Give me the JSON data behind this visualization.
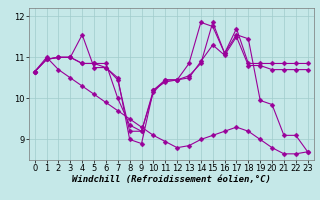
{
  "background_color": "#c5e8e8",
  "line_color": "#990099",
  "marker": "D",
  "markersize": 2.5,
  "linewidth": 0.8,
  "grid_color": "#a0cccc",
  "xlabel": "Windchill (Refroidissement éolien,°C)",
  "xlabel_fontsize": 6.5,
  "xlim": [
    -0.5,
    23.5
  ],
  "ylim": [
    8.5,
    12.2
  ],
  "yticks": [
    9,
    10,
    11,
    12
  ],
  "xticks": [
    0,
    1,
    2,
    3,
    4,
    5,
    6,
    7,
    8,
    9,
    10,
    11,
    12,
    13,
    14,
    15,
    16,
    17,
    18,
    19,
    20,
    21,
    22,
    23
  ],
  "tick_fontsize": 6,
  "series": [
    [
      10.65,
      10.95,
      11.0,
      11.0,
      11.55,
      10.75,
      10.75,
      10.5,
      9.0,
      8.9,
      10.2,
      10.4,
      10.45,
      10.55,
      10.85,
      11.85,
      11.1,
      11.55,
      11.45,
      9.95,
      9.85,
      9.1,
      9.1,
      8.7
    ],
    [
      10.65,
      10.95,
      11.0,
      11.0,
      10.85,
      10.85,
      10.85,
      10.0,
      9.35,
      9.2,
      10.15,
      10.45,
      10.45,
      10.85,
      11.85,
      11.75,
      11.1,
      11.7,
      10.85,
      10.85,
      10.85,
      10.85,
      10.85,
      10.85
    ],
    [
      10.65,
      10.95,
      11.0,
      11.0,
      10.85,
      10.85,
      10.75,
      10.45,
      9.2,
      9.2,
      10.2,
      10.45,
      10.45,
      10.5,
      10.9,
      11.3,
      11.05,
      11.5,
      10.8,
      10.8,
      10.7,
      10.7,
      10.7,
      10.7
    ],
    [
      10.65,
      11.0,
      10.7,
      10.5,
      10.3,
      10.1,
      9.9,
      9.7,
      9.5,
      9.3,
      9.1,
      8.95,
      8.8,
      8.85,
      9.0,
      9.1,
      9.2,
      9.3,
      9.2,
      9.0,
      8.8,
      8.65,
      8.65,
      8.7
    ]
  ]
}
